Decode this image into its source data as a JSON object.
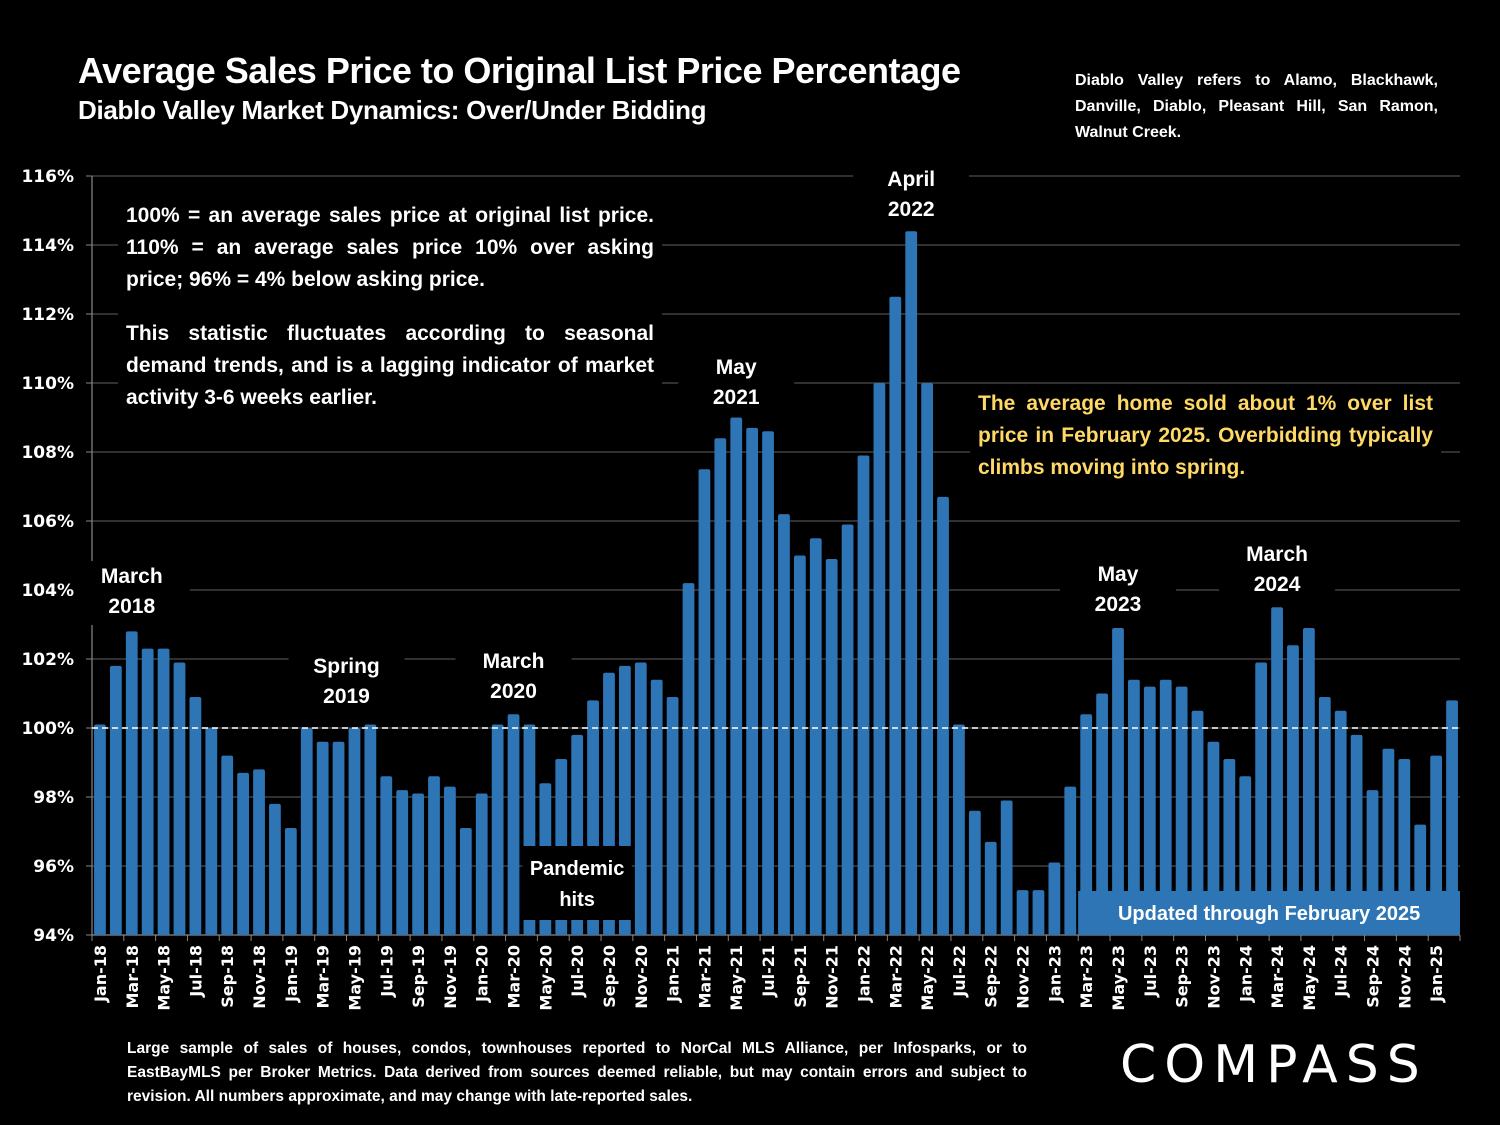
{
  "header": {
    "title": "Average Sales Price to Original List Price Percentage",
    "subtitle": "Diablo Valley Market Dynamics: Over/Under Bidding",
    "region_note": "Diablo Valley refers to Alamo, Blackhawk, Danville, Diablo, Pleasant Hill, San Ramon, Walnut Creek."
  },
  "notes": {
    "definition": "100% = an average sales price at original list price. 110% = an average sales price 10% over asking price; 96% = 4% below asking price.",
    "seasonality": "This statistic fluctuates according to seasonal demand trends, and is a lagging indicator of market activity 3-6 weeks earlier.",
    "highlight": "The average home sold about 1% over list price in February 2025. Overbidding typically climbs moving into spring."
  },
  "footer": {
    "disclaimer": "Large sample of sales of houses, condos, townhouses reported to NorCal MLS Alliance, per Infosparks, or to EastBayMLS per Broker Metrics. Data derived from sources deemed reliable, but may contain errors and subject to revision. All numbers approximate, and may change with late-reported sales.",
    "logo": "COMPASS"
  },
  "colors": {
    "bar": "#2e75b6",
    "background": "#000000",
    "text": "#ffffff",
    "highlight_text": "#ffd966",
    "gridline": "#404040"
  },
  "chart_data": {
    "type": "bar",
    "title": "Average Sales Price to Original List Price Percentage",
    "xlabel": "",
    "ylabel": "",
    "ylim": [
      94,
      116
    ],
    "y_ticks": [
      94,
      96,
      98,
      100,
      102,
      104,
      106,
      108,
      110,
      112,
      114,
      116
    ],
    "y_tick_format": "percent",
    "grid": true,
    "reference_line": {
      "value": 100,
      "style": "dashed"
    },
    "categories": [
      "Jan-18",
      "Feb-18",
      "Mar-18",
      "Apr-18",
      "May-18",
      "Jun-18",
      "Jul-18",
      "Aug-18",
      "Sep-18",
      "Oct-18",
      "Nov-18",
      "Dec-18",
      "Jan-19",
      "Feb-19",
      "Mar-19",
      "Apr-19",
      "May-19",
      "Jun-19",
      "Jul-19",
      "Aug-19",
      "Sep-19",
      "Oct-19",
      "Nov-19",
      "Dec-19",
      "Jan-20",
      "Feb-20",
      "Mar-20",
      "Apr-20",
      "May-20",
      "Jun-20",
      "Jul-20",
      "Aug-20",
      "Sep-20",
      "Oct-20",
      "Nov-20",
      "Dec-20",
      "Jan-21",
      "Feb-21",
      "Mar-21",
      "Apr-21",
      "May-21",
      "Jun-21",
      "Jul-21",
      "Aug-21",
      "Sep-21",
      "Oct-21",
      "Nov-21",
      "Dec-21",
      "Jan-22",
      "Feb-22",
      "Mar-22",
      "Apr-22",
      "May-22",
      "Jun-22",
      "Jul-22",
      "Aug-22",
      "Sep-22",
      "Oct-22",
      "Nov-22",
      "Dec-22",
      "Jan-23",
      "Feb-23",
      "Mar-23",
      "Apr-23",
      "May-23",
      "Jun-23",
      "Jul-23",
      "Aug-23",
      "Sep-23",
      "Oct-23",
      "Nov-23",
      "Dec-23",
      "Jan-24",
      "Feb-24",
      "Mar-24",
      "Apr-24",
      "May-24",
      "Jun-24",
      "Jul-24",
      "Aug-24",
      "Sep-24",
      "Oct-24",
      "Nov-24",
      "Dec-24",
      "Jan-25",
      "Feb-25"
    ],
    "shown_tick_labels_every": 2,
    "values": [
      100.1,
      101.8,
      102.8,
      102.3,
      102.3,
      101.9,
      100.9,
      100.0,
      99.2,
      98.7,
      98.8,
      97.8,
      97.1,
      100.0,
      99.6,
      99.6,
      100.0,
      100.1,
      98.6,
      98.2,
      98.1,
      98.6,
      98.3,
      97.1,
      98.1,
      100.1,
      100.4,
      100.1,
      98.4,
      99.1,
      99.8,
      100.8,
      101.6,
      101.8,
      101.9,
      101.4,
      100.9,
      104.2,
      107.5,
      108.4,
      109.0,
      108.7,
      108.6,
      106.2,
      105.0,
      105.5,
      104.9,
      105.9,
      107.9,
      110.0,
      112.5,
      114.4,
      110.0,
      106.7,
      100.1,
      97.6,
      96.7,
      97.9,
      95.3,
      95.3,
      96.1,
      98.3,
      100.4,
      101.0,
      102.9,
      101.4,
      101.2,
      101.4,
      101.2,
      100.5,
      99.6,
      99.1,
      98.6,
      101.9,
      103.5,
      102.4,
      102.9,
      100.9,
      100.5,
      99.8,
      98.2,
      99.4,
      99.1,
      97.2,
      99.2,
      100.8
    ],
    "annotations": [
      {
        "label": "March 2018",
        "line1": "March",
        "line2": "2018",
        "at": "Mar-18"
      },
      {
        "label": "Spring 2019",
        "line1": "Spring",
        "line2": "2019",
        "at": "Apr-19"
      },
      {
        "label": "March 2020",
        "line1": "March",
        "line2": "2020",
        "at": "Mar-20"
      },
      {
        "label": "Pandemic hits",
        "line1": "Pandemic",
        "line2": "hits",
        "at": "Apr-20"
      },
      {
        "label": "May 2021",
        "line1": "May",
        "line2": "2021",
        "at": "May-21"
      },
      {
        "label": "April 2022",
        "line1": "April",
        "line2": "2022",
        "at": "Apr-22"
      },
      {
        "label": "May 2023",
        "line1": "May",
        "line2": "2023",
        "at": "May-23"
      },
      {
        "label": "March 2024",
        "line1": "March",
        "line2": "2024",
        "at": "Mar-24"
      }
    ],
    "update_banner": "Updated through February 2025"
  }
}
